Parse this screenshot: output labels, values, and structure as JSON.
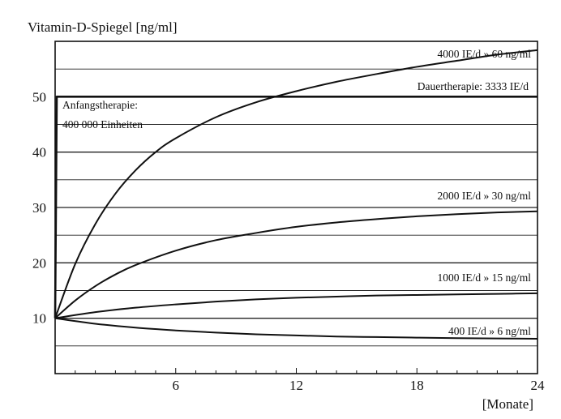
{
  "chart_data": {
    "type": "line",
    "title": "Vitamin-D-Spiegel [ng/ml]",
    "xlabel": "[Monate]",
    "ylabel": "",
    "xlim": [
      0,
      24
    ],
    "ylim": [
      0,
      60
    ],
    "x_ticks": [
      "6",
      "12",
      "18",
      "24"
    ],
    "y_ticks": [
      "10",
      "20",
      "30",
      "40",
      "50"
    ],
    "grid": "horizontal",
    "series": [
      {
        "name": "4000 IE/d » 60 ng/ml",
        "points": [
          [
            0,
            10
          ],
          [
            1,
            19.8
          ],
          [
            2,
            27.0
          ],
          [
            3,
            32.5
          ],
          [
            4,
            36.7
          ],
          [
            5,
            40.0
          ],
          [
            6,
            42.5
          ],
          [
            8,
            46.3
          ],
          [
            10,
            49.0
          ],
          [
            12,
            51.0
          ],
          [
            14,
            52.7
          ],
          [
            16,
            54.1
          ],
          [
            18,
            55.4
          ],
          [
            20,
            56.5
          ],
          [
            22,
            57.6
          ],
          [
            24,
            58.4
          ]
        ]
      },
      {
        "name": "2000 IE/d » 30 ng/ml",
        "points": [
          [
            0,
            10
          ],
          [
            1,
            13.2
          ],
          [
            2,
            15.8
          ],
          [
            3,
            17.9
          ],
          [
            4,
            19.6
          ],
          [
            6,
            22.2
          ],
          [
            8,
            24.1
          ],
          [
            10,
            25.4
          ],
          [
            12,
            26.5
          ],
          [
            14,
            27.3
          ],
          [
            16,
            27.9
          ],
          [
            18,
            28.4
          ],
          [
            20,
            28.8
          ],
          [
            22,
            29.1
          ],
          [
            24,
            29.3
          ]
        ]
      },
      {
        "name": "1000 IE/d » 15 ng/ml",
        "points": [
          [
            0,
            10
          ],
          [
            2,
            11.1
          ],
          [
            4,
            11.9
          ],
          [
            6,
            12.5
          ],
          [
            8,
            13.0
          ],
          [
            10,
            13.4
          ],
          [
            12,
            13.7
          ],
          [
            14,
            13.9
          ],
          [
            16,
            14.1
          ],
          [
            18,
            14.2
          ],
          [
            20,
            14.3
          ],
          [
            22,
            14.4
          ],
          [
            24,
            14.5
          ]
        ]
      },
      {
        "name": "400 IE/d » 6 ng/ml",
        "points": [
          [
            0,
            10
          ],
          [
            2,
            9.0
          ],
          [
            4,
            8.3
          ],
          [
            6,
            7.8
          ],
          [
            8,
            7.4
          ],
          [
            10,
            7.1
          ],
          [
            12,
            6.9
          ],
          [
            14,
            6.7
          ],
          [
            16,
            6.6
          ],
          [
            18,
            6.5
          ],
          [
            20,
            6.4
          ],
          [
            22,
            6.35
          ],
          [
            24,
            6.3
          ]
        ]
      },
      {
        "name": "Dauertherapie: 3333 IE/d",
        "points": [
          [
            0,
            10
          ],
          [
            0.08,
            50
          ],
          [
            24,
            50
          ]
        ]
      }
    ],
    "annotations": [
      {
        "text": "Anfangstherapie:"
      },
      {
        "text": "400 000 Einheiten"
      }
    ]
  }
}
